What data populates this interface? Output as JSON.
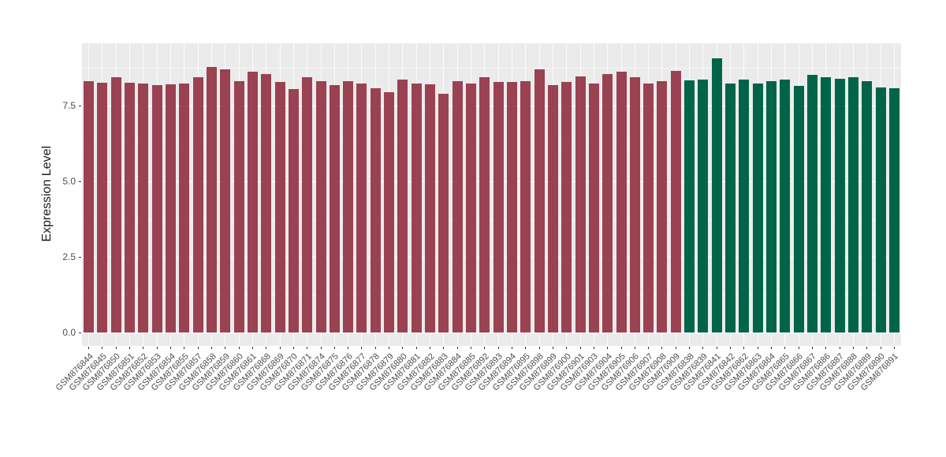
{
  "chart": {
    "panel_bg": "#EBEBEB",
    "grid_color": "#FFFFFF",
    "tick_color": "#333333",
    "axis_text_color": "#4D4D4D",
    "group_colors": {
      "group1": "#9A4252",
      "group2": "#006548"
    }
  },
  "chart_data": {
    "type": "bar",
    "title": "",
    "xlabel": "",
    "ylabel": "Expression Level",
    "legend": "none",
    "grid": true,
    "ylim": [
      -0.44,
      9.56
    ],
    "ytick_values": [
      0,
      2.5,
      5,
      7.5
    ],
    "ytick_labels": [
      "0.0",
      "2.5",
      "5.0",
      "7.5"
    ],
    "minor_tick_values": [
      1.25,
      3.75,
      6.25,
      8.75
    ],
    "categories": [
      "GSM876844",
      "GSM876845",
      "GSM876850",
      "GSM876851",
      "GSM876852",
      "GSM876853",
      "GSM876854",
      "GSM876855",
      "GSM876857",
      "GSM876858",
      "GSM876859",
      "GSM876860",
      "GSM876861",
      "GSM876868",
      "GSM876869",
      "GSM876870",
      "GSM876871",
      "GSM876874",
      "GSM876875",
      "GSM876876",
      "GSM876877",
      "GSM876878",
      "GSM876879",
      "GSM876880",
      "GSM876881",
      "GSM876882",
      "GSM876883",
      "GSM876884",
      "GSM876885",
      "GSM876892",
      "GSM876893",
      "GSM876894",
      "GSM876895",
      "GSM876898",
      "GSM876899",
      "GSM876900",
      "GSM876901",
      "GSM876903",
      "GSM876904",
      "GSM876905",
      "GSM876906",
      "GSM876907",
      "GSM876908",
      "GSM876909",
      "GSM876838",
      "GSM876839",
      "GSM876841",
      "GSM876842",
      "GSM876862",
      "GSM876863",
      "GSM876864",
      "GSM876865",
      "GSM876866",
      "GSM876867",
      "GSM876886",
      "GSM876887",
      "GSM876888",
      "GSM876889",
      "GSM876890",
      "GSM876891"
    ],
    "values": [
      8.31,
      8.27,
      8.43,
      8.25,
      8.22,
      8.18,
      8.21,
      8.24,
      8.43,
      8.79,
      8.7,
      8.3,
      8.61,
      8.54,
      8.29,
      8.05,
      8.43,
      8.3,
      8.19,
      8.32,
      8.24,
      8.07,
      7.95,
      8.35,
      8.23,
      8.2,
      7.89,
      8.32,
      8.22,
      8.45,
      8.28,
      8.28,
      8.3,
      8.7,
      8.19,
      8.28,
      8.46,
      8.23,
      8.54,
      8.63,
      8.43,
      8.22,
      8.32,
      8.65,
      8.33,
      8.35,
      9.07,
      8.22,
      8.37,
      8.24,
      8.32,
      8.37,
      8.16,
      8.52,
      8.45,
      8.4,
      8.43,
      8.31,
      8.1,
      8.07
    ],
    "groups": [
      "group1",
      "group1",
      "group1",
      "group1",
      "group1",
      "group1",
      "group1",
      "group1",
      "group1",
      "group1",
      "group1",
      "group1",
      "group1",
      "group1",
      "group1",
      "group1",
      "group1",
      "group1",
      "group1",
      "group1",
      "group1",
      "group1",
      "group1",
      "group1",
      "group1",
      "group1",
      "group1",
      "group1",
      "group1",
      "group1",
      "group1",
      "group1",
      "group1",
      "group1",
      "group1",
      "group1",
      "group1",
      "group1",
      "group1",
      "group1",
      "group1",
      "group1",
      "group1",
      "group1",
      "group2",
      "group2",
      "group2",
      "group2",
      "group2",
      "group2",
      "group2",
      "group2",
      "group2",
      "group2",
      "group2",
      "group2",
      "group2",
      "group2",
      "group2",
      "group2"
    ]
  }
}
